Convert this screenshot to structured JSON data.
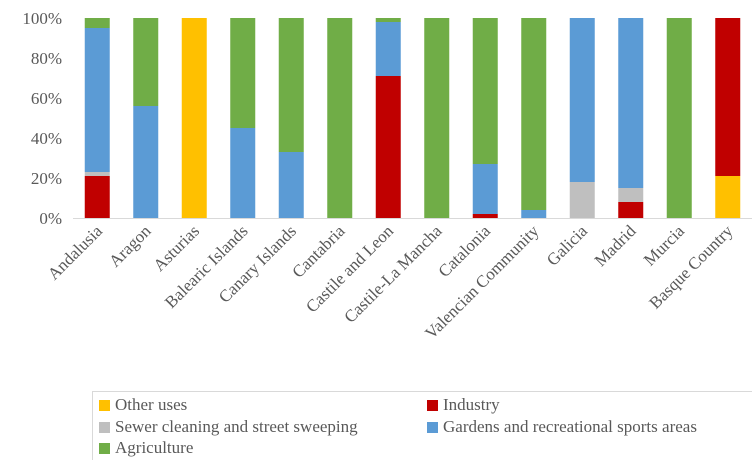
{
  "chart_data": {
    "type": "bar",
    "stacked": true,
    "percent": true,
    "categories": [
      "Andalusia",
      "Aragon",
      "Asturias",
      "Balearic Islands",
      "Canary Islands",
      "Cantabria",
      "Castile and Leon",
      "Castile-La Mancha",
      "Catalonia",
      "Valencian Community",
      "Galicia",
      "Madrid",
      "Murcia",
      "Basque Country"
    ],
    "series": [
      {
        "name": "Other uses",
        "color": "#FFC000",
        "values": [
          0,
          0,
          100,
          0,
          0,
          0,
          0,
          0,
          0,
          0,
          0,
          0,
          0,
          21
        ]
      },
      {
        "name": "Industry",
        "color": "#C00000",
        "values": [
          21,
          0,
          0,
          0,
          0,
          0,
          71,
          0,
          2,
          0,
          0,
          8,
          0,
          79
        ]
      },
      {
        "name": "Sewer cleaning and street sweeping",
        "color": "#BFBFBF",
        "values": [
          2,
          0,
          0,
          0,
          0,
          0,
          0,
          0,
          0,
          0,
          18,
          7,
          0,
          0
        ]
      },
      {
        "name": "Gardens and recreational sports areas",
        "color": "#5B9BD5",
        "values": [
          72,
          56,
          0,
          45,
          33,
          0,
          27,
          0,
          25,
          4,
          82,
          85,
          0,
          0
        ]
      },
      {
        "name": "Agriculture",
        "color": "#70AD47",
        "values": [
          5,
          44,
          0,
          55,
          67,
          100,
          2,
          100,
          73,
          96,
          0,
          0,
          100,
          0
        ]
      }
    ],
    "yticks": [
      "0%",
      "20%",
      "40%",
      "60%",
      "80%",
      "100%"
    ],
    "ylim": [
      0,
      100
    ],
    "grid": false,
    "legend_position": "bottom"
  }
}
